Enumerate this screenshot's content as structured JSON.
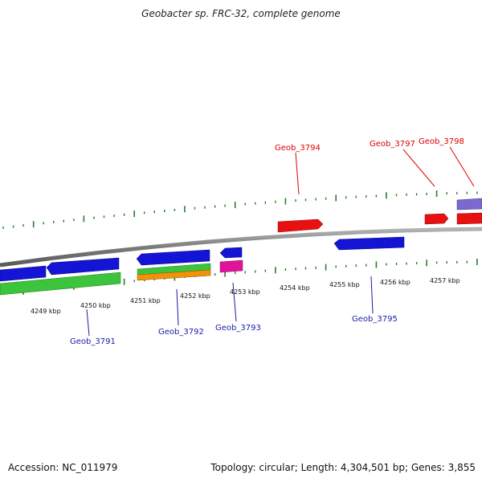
{
  "title": "Geobacter sp. FRC-32, complete genome",
  "footer": {
    "accession": "Accession: NC_011979",
    "summary": "Topology: circular; Length: 4,304,501 bp; Genes: 3,855"
  },
  "ticks": {
    "labels": [
      "4249 kbp",
      "4250 kbp",
      "4251 kbp",
      "4252 kbp",
      "4253 kbp",
      "4254 kbp",
      "4255 kbp",
      "4256 kbp",
      "4257 kbp"
    ]
  },
  "gene_labels": {
    "forward": [
      "Geob_3794",
      "Geob_3797",
      "Geob_3798"
    ],
    "reverse": [
      "Geob_3791",
      "Geob_3792",
      "Geob_3793",
      "Geob_3795"
    ]
  },
  "colors": {
    "forward_label": "#dd0000",
    "reverse_label": "#1a1aa8",
    "tick": "#2a7d2a",
    "backbone": "#888888",
    "blue_gene": "#1414d4",
    "red_gene": "#e81010",
    "green_gene": "#3cc43c",
    "orange_gene": "#f0920a",
    "magenta_gene": "#e0149a",
    "violet_gene": "#7a6ad0"
  }
}
